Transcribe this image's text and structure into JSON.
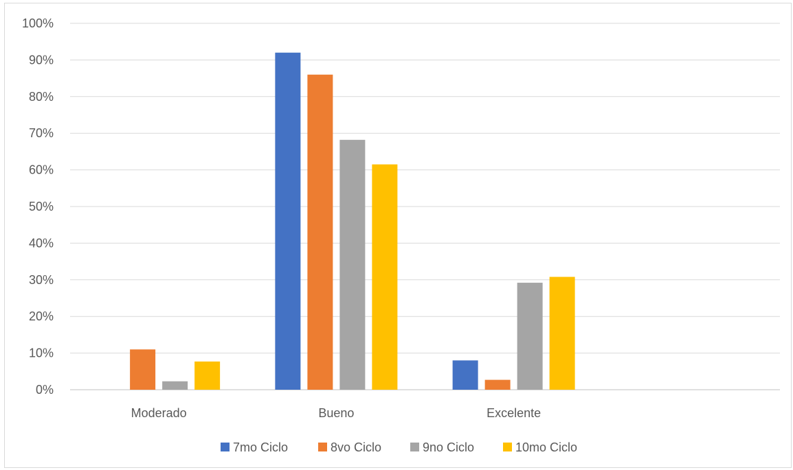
{
  "chart_data": {
    "type": "bar",
    "categories": [
      "Moderado",
      "Bueno",
      "Excelente"
    ],
    "series": [
      {
        "name": "7mo Ciclo",
        "color": "#4472C4",
        "values": [
          0,
          92,
          8
        ]
      },
      {
        "name": "8vo Ciclo",
        "color": "#ED7D31",
        "values": [
          11,
          86,
          2.7
        ]
      },
      {
        "name": "9no Ciclo",
        "color": "#A5A5A5",
        "values": [
          2.3,
          68.2,
          29.2
        ]
      },
      {
        "name": "10mo Ciclo",
        "color": "#FFC000",
        "values": [
          7.7,
          61.5,
          30.8
        ]
      }
    ],
    "ylim": [
      0,
      100
    ],
    "yticks": [
      "0%",
      "10%",
      "20%",
      "30%",
      "40%",
      "50%",
      "60%",
      "70%",
      "80%",
      "90%",
      "100%"
    ],
    "grid": true,
    "legend_position": "bottom"
  }
}
